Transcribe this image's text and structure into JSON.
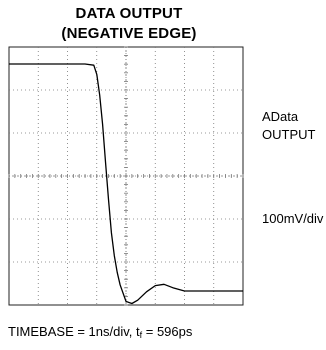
{
  "title": {
    "line1": "DATA OUTPUT",
    "line2": "(NEGATIVE EDGE)"
  },
  "labels": {
    "channel_a": "AData",
    "channel_b": "OUTPUT",
    "vertical_scale": "100mV/div"
  },
  "caption": {
    "prefix": "TIMEBASE = 1ns/div, t",
    "sub": "f",
    "suffix": " = 596ps"
  },
  "colors": {
    "trace": "#000000",
    "grid": "#777777"
  },
  "chart_data": {
    "type": "line",
    "grid": {
      "x_divisions": 8,
      "y_divisions": 6
    },
    "series": [
      {
        "x": [
          0.0,
          1.0,
          2.0,
          2.6,
          2.9,
          3.0,
          3.1,
          3.2,
          3.3,
          3.4,
          3.5,
          3.6,
          3.7,
          3.8,
          4.0,
          4.2,
          4.4,
          4.7,
          5.0,
          5.3,
          5.6,
          6.0,
          6.5,
          7.0,
          7.5,
          8.0
        ],
        "y": [
          5.45,
          5.45,
          5.45,
          5.45,
          5.42,
          5.2,
          4.7,
          4.0,
          3.1,
          2.2,
          1.4,
          0.85,
          0.45,
          0.15,
          -0.25,
          -0.3,
          -0.22,
          -0.02,
          0.13,
          0.16,
          0.08,
          0.0,
          0.0,
          0.0,
          0.0,
          0.0
        ]
      }
    ]
  }
}
